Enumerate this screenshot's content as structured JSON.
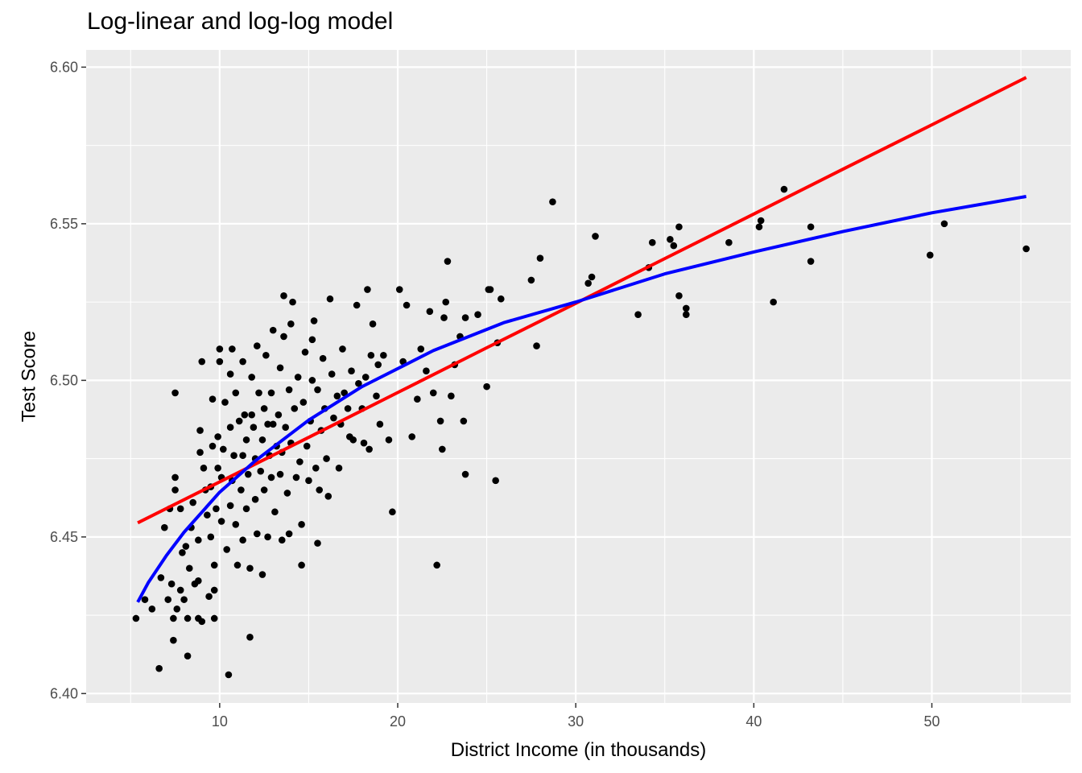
{
  "chart_data": {
    "type": "scatter",
    "title": "Log-linear and log-log model",
    "xlabel": "District Income (in thousands)",
    "ylabel": "Test Score",
    "xlim": [
      2.5,
      57.8
    ],
    "ylim": [
      6.397,
      6.6055
    ],
    "x_ticks": [
      10,
      20,
      30,
      40,
      50
    ],
    "y_ticks": [
      6.4,
      6.45,
      6.5,
      6.55,
      6.6
    ],
    "y_tick_labels": [
      "6.40",
      "6.45",
      "6.50",
      "6.55",
      "6.60"
    ],
    "grid": true,
    "panel_background": "#ebebeb",
    "grid_color": "#ffffff",
    "point_color": "#000000",
    "points": [
      [
        5.3,
        6.424
      ],
      [
        5.8,
        6.43
      ],
      [
        6.2,
        6.427
      ],
      [
        6.6,
        6.408
      ],
      [
        6.7,
        6.437
      ],
      [
        6.9,
        6.453
      ],
      [
        7.1,
        6.43
      ],
      [
        7.2,
        6.459
      ],
      [
        7.3,
        6.435
      ],
      [
        7.4,
        6.424
      ],
      [
        7.4,
        6.417
      ],
      [
        7.5,
        6.465
      ],
      [
        7.5,
        6.469
      ],
      [
        7.5,
        6.496
      ],
      [
        7.6,
        6.427
      ],
      [
        7.8,
        6.433
      ],
      [
        7.8,
        6.459
      ],
      [
        7.9,
        6.445
      ],
      [
        8.0,
        6.43
      ],
      [
        8.1,
        6.447
      ],
      [
        8.2,
        6.412
      ],
      [
        8.2,
        6.424
      ],
      [
        8.3,
        6.44
      ],
      [
        8.4,
        6.453
      ],
      [
        8.5,
        6.461
      ],
      [
        8.6,
        6.435
      ],
      [
        8.8,
        6.424
      ],
      [
        8.8,
        6.436
      ],
      [
        8.8,
        6.449
      ],
      [
        8.9,
        6.477
      ],
      [
        8.9,
        6.484
      ],
      [
        9.0,
        6.423
      ],
      [
        9.0,
        6.506
      ],
      [
        9.1,
        6.472
      ],
      [
        9.2,
        6.465
      ],
      [
        9.3,
        6.457
      ],
      [
        9.4,
        6.431
      ],
      [
        9.5,
        6.45
      ],
      [
        9.5,
        6.466
      ],
      [
        9.6,
        6.479
      ],
      [
        9.6,
        6.494
      ],
      [
        9.7,
        6.433
      ],
      [
        9.7,
        6.441
      ],
      [
        9.7,
        6.424
      ],
      [
        9.8,
        6.459
      ],
      [
        9.9,
        6.472
      ],
      [
        9.9,
        6.482
      ],
      [
        10.0,
        6.506
      ],
      [
        10.0,
        6.51
      ],
      [
        10.1,
        6.455
      ],
      [
        10.1,
        6.469
      ],
      [
        10.2,
        6.478
      ],
      [
        10.3,
        6.493
      ],
      [
        10.4,
        6.446
      ],
      [
        10.5,
        6.406
      ],
      [
        10.6,
        6.46
      ],
      [
        10.6,
        6.485
      ],
      [
        10.6,
        6.502
      ],
      [
        10.7,
        6.468
      ],
      [
        10.7,
        6.51
      ],
      [
        10.8,
        6.476
      ],
      [
        10.9,
        6.454
      ],
      [
        10.9,
        6.496
      ],
      [
        11.0,
        6.441
      ],
      [
        11.1,
        6.487
      ],
      [
        11.2,
        6.465
      ],
      [
        11.3,
        6.449
      ],
      [
        11.3,
        6.506
      ],
      [
        11.3,
        6.476
      ],
      [
        11.4,
        6.489
      ],
      [
        11.5,
        6.481
      ],
      [
        11.5,
        6.459
      ],
      [
        11.6,
        6.47
      ],
      [
        11.7,
        6.44
      ],
      [
        11.7,
        6.418
      ],
      [
        11.8,
        6.501
      ],
      [
        11.8,
        6.489
      ],
      [
        11.9,
        6.485
      ],
      [
        12.0,
        6.475
      ],
      [
        12.0,
        6.462
      ],
      [
        12.1,
        6.451
      ],
      [
        12.1,
        6.511
      ],
      [
        12.2,
        6.496
      ],
      [
        12.3,
        6.471
      ],
      [
        12.4,
        6.481
      ],
      [
        12.4,
        6.438
      ],
      [
        12.5,
        6.465
      ],
      [
        12.5,
        6.491
      ],
      [
        12.6,
        6.508
      ],
      [
        12.7,
        6.45
      ],
      [
        12.7,
        6.486
      ],
      [
        12.8,
        6.476
      ],
      [
        12.9,
        6.469
      ],
      [
        12.9,
        6.496
      ],
      [
        13.0,
        6.516
      ],
      [
        13.0,
        6.486
      ],
      [
        13.1,
        6.458
      ],
      [
        13.2,
        6.479
      ],
      [
        13.3,
        6.489
      ],
      [
        13.4,
        6.47
      ],
      [
        13.4,
        6.504
      ],
      [
        13.5,
        6.449
      ],
      [
        13.5,
        6.477
      ],
      [
        13.6,
        6.514
      ],
      [
        13.6,
        6.527
      ],
      [
        13.7,
        6.485
      ],
      [
        13.8,
        6.464
      ],
      [
        13.9,
        6.497
      ],
      [
        13.9,
        6.451
      ],
      [
        14.0,
        6.518
      ],
      [
        14.0,
        6.48
      ],
      [
        14.1,
        6.525
      ],
      [
        14.2,
        6.491
      ],
      [
        14.3,
        6.469
      ],
      [
        14.4,
        6.501
      ],
      [
        14.5,
        6.474
      ],
      [
        14.6,
        6.454
      ],
      [
        14.6,
        6.441
      ],
      [
        14.7,
        6.493
      ],
      [
        14.8,
        6.509
      ],
      [
        14.9,
        6.479
      ],
      [
        15.0,
        6.468
      ],
      [
        15.1,
        6.487
      ],
      [
        15.2,
        6.5
      ],
      [
        15.2,
        6.513
      ],
      [
        15.3,
        6.519
      ],
      [
        15.4,
        6.472
      ],
      [
        15.5,
        6.497
      ],
      [
        15.5,
        6.448
      ],
      [
        15.6,
        6.465
      ],
      [
        15.7,
        6.484
      ],
      [
        15.8,
        6.507
      ],
      [
        15.9,
        6.491
      ],
      [
        16.0,
        6.475
      ],
      [
        16.1,
        6.463
      ],
      [
        16.2,
        6.526
      ],
      [
        16.3,
        6.502
      ],
      [
        16.4,
        6.488
      ],
      [
        16.6,
        6.495
      ],
      [
        16.7,
        6.472
      ],
      [
        16.8,
        6.486
      ],
      [
        16.9,
        6.51
      ],
      [
        17.0,
        6.496
      ],
      [
        17.2,
        6.491
      ],
      [
        17.3,
        6.482
      ],
      [
        17.4,
        6.503
      ],
      [
        17.5,
        6.481
      ],
      [
        17.7,
        6.524
      ],
      [
        17.8,
        6.499
      ],
      [
        18.0,
        6.491
      ],
      [
        18.1,
        6.48
      ],
      [
        18.2,
        6.501
      ],
      [
        18.3,
        6.529
      ],
      [
        18.4,
        6.478
      ],
      [
        18.5,
        6.508
      ],
      [
        18.6,
        6.518
      ],
      [
        18.8,
        6.495
      ],
      [
        18.9,
        6.505
      ],
      [
        19.0,
        6.486
      ],
      [
        19.2,
        6.508
      ],
      [
        19.5,
        6.481
      ],
      [
        19.7,
        6.458
      ],
      [
        20.1,
        6.529
      ],
      [
        20.3,
        6.506
      ],
      [
        20.5,
        6.524
      ],
      [
        20.8,
        6.482
      ],
      [
        21.1,
        6.494
      ],
      [
        21.3,
        6.51
      ],
      [
        21.6,
        6.503
      ],
      [
        21.8,
        6.522
      ],
      [
        22.0,
        6.496
      ],
      [
        22.2,
        6.441
      ],
      [
        22.4,
        6.487
      ],
      [
        22.5,
        6.478
      ],
      [
        22.6,
        6.52
      ],
      [
        22.7,
        6.525
      ],
      [
        22.8,
        6.538
      ],
      [
        23.0,
        6.495
      ],
      [
        23.2,
        6.505
      ],
      [
        23.5,
        6.514
      ],
      [
        23.7,
        6.487
      ],
      [
        23.8,
        6.47
      ],
      [
        23.8,
        6.52
      ],
      [
        24.5,
        6.521
      ],
      [
        25.0,
        6.498
      ],
      [
        25.1,
        6.529
      ],
      [
        25.2,
        6.529
      ],
      [
        25.5,
        6.468
      ],
      [
        25.6,
        6.512
      ],
      [
        25.8,
        6.526
      ],
      [
        27.5,
        6.532
      ],
      [
        27.8,
        6.511
      ],
      [
        28.0,
        6.539
      ],
      [
        28.7,
        6.557
      ],
      [
        30.7,
        6.531
      ],
      [
        30.9,
        6.533
      ],
      [
        31.1,
        6.546
      ],
      [
        33.5,
        6.521
      ],
      [
        34.1,
        6.536
      ],
      [
        34.3,
        6.544
      ],
      [
        35.3,
        6.545
      ],
      [
        35.5,
        6.543
      ],
      [
        35.8,
        6.527
      ],
      [
        35.8,
        6.549
      ],
      [
        36.2,
        6.521
      ],
      [
        36.2,
        6.523
      ],
      [
        38.6,
        6.544
      ],
      [
        40.3,
        6.549
      ],
      [
        40.4,
        6.551
      ],
      [
        41.1,
        6.525
      ],
      [
        41.7,
        6.561
      ],
      [
        43.2,
        6.549
      ],
      [
        43.2,
        6.538
      ],
      [
        49.9,
        6.54
      ],
      [
        50.7,
        6.55
      ],
      [
        55.3,
        6.542
      ]
    ],
    "series": [
      {
        "color": "#ff0000",
        "x": [
          5.4,
          10,
          15,
          20,
          25,
          30,
          35,
          40,
          45,
          50,
          55.3
        ],
        "y": [
          6.4545,
          6.4676,
          6.4818,
          6.4961,
          6.5104,
          6.5246,
          6.5389,
          6.5531,
          6.5674,
          6.5816,
          6.5967
        ]
      },
      {
        "color": "#0000ff",
        "x": [
          5.4,
          6,
          7,
          8,
          10,
          12,
          15,
          18,
          22,
          26,
          30,
          35,
          40,
          45,
          50,
          55.3
        ],
        "y": [
          6.4292,
          6.4355,
          6.444,
          6.4515,
          6.4643,
          6.4743,
          6.4873,
          6.498,
          6.5095,
          6.5185,
          6.525,
          6.534,
          6.541,
          6.5475,
          6.5535,
          6.5587
        ]
      }
    ]
  }
}
